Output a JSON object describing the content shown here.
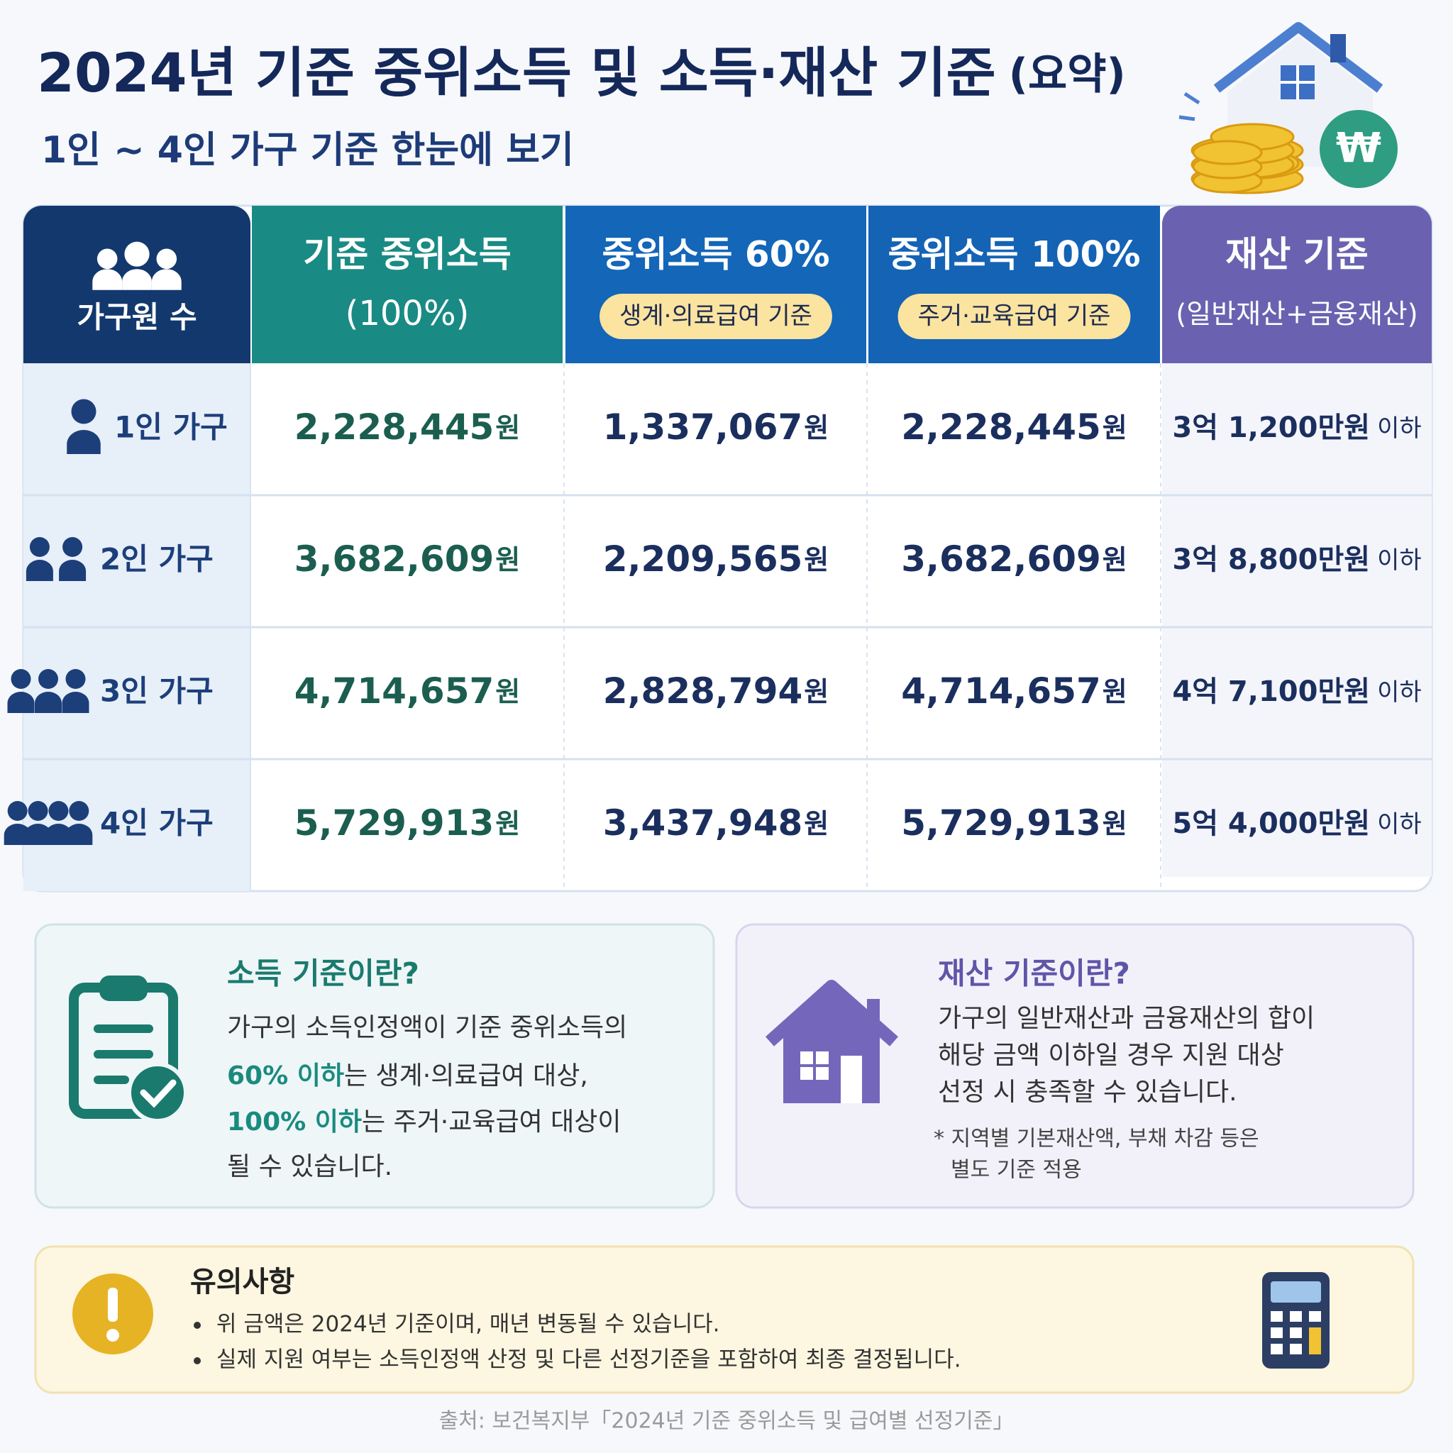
{
  "header": {
    "title": "2024년 기준 중위소득 및 소득·재산 기준",
    "title_suffix": "(요약)",
    "subtitle": "1인 ~ 4인 가구 기준 한눈에 보기"
  },
  "table": {
    "headers": [
      {
        "title": "가구원 수"
      },
      {
        "title": "기준 중위소득",
        "subtitle": "(100%)"
      },
      {
        "title": "중위소득 60%",
        "badge": "생계·의료급여 기준"
      },
      {
        "title": "중위소득 100%",
        "badge": "주거·교육급여 기준"
      },
      {
        "title": "재산 기준",
        "subtitle": "(일반재산+금융재산)"
      }
    ],
    "rows": [
      {
        "household": "1인 가구",
        "median": {
          "value": "2,228,445",
          "unit": "원"
        },
        "pct60": {
          "value": "1,337,067",
          "unit": "원"
        },
        "pct100": {
          "value": "2,228,445",
          "unit": "원"
        },
        "asset": {
          "value": "3억 1,200만원",
          "unit": "이하"
        }
      },
      {
        "household": "2인 가구",
        "median": {
          "value": "3,682,609",
          "unit": "원"
        },
        "pct60": {
          "value": "2,209,565",
          "unit": "원"
        },
        "pct100": {
          "value": "3,682,609",
          "unit": "원"
        },
        "asset": {
          "value": "3억 8,800만원",
          "unit": "이하"
        }
      },
      {
        "household": "3인 가구",
        "median": {
          "value": "4,714,657",
          "unit": "원"
        },
        "pct60": {
          "value": "2,828,794",
          "unit": "원"
        },
        "pct100": {
          "value": "4,714,657",
          "unit": "원"
        },
        "asset": {
          "value": "4억 7,100만원",
          "unit": "이하"
        }
      },
      {
        "household": "4인 가구",
        "median": {
          "value": "5,729,913",
          "unit": "원"
        },
        "pct60": {
          "value": "3,437,948",
          "unit": "원"
        },
        "pct100": {
          "value": "5,729,913",
          "unit": "원"
        },
        "asset": {
          "value": "5억 4,000만원",
          "unit": "이하"
        }
      }
    ]
  },
  "income_box": {
    "title": "소득 기준이란?",
    "lines": [
      {
        "text": "가구의 소득인정액이 기준 중위소득의"
      },
      {
        "highlight": "60% 이하",
        "text": "는 생계·의료급여 대상,"
      },
      {
        "highlight": "100% 이하",
        "text": "는 주거·교육급여 대상이"
      },
      {
        "text": "될 수 있습니다."
      }
    ]
  },
  "asset_box": {
    "title": "재산 기준이란?",
    "lines": [
      "가구의 일반재산과 금융재산의 합이",
      "해당 금액 이하일 경우 지원 대상",
      "선정 시 충족할 수 있습니다."
    ],
    "note": [
      "* 지역별 기본재산액, 부채 차감 등은",
      "별도 기준 적용"
    ]
  },
  "notice": {
    "title": "유의사항",
    "bullets": [
      "위 금액은 2024년 기준이며, 매년 변동될 수 있습니다.",
      "실제 지원 여부는 소득인정액 산정 및 다른 선정기준을 포함하여 최종 결정됩니다."
    ]
  },
  "source": "출처: 보건복지부「2024년 기준 중위소득 및 급여별 선정기준」"
}
